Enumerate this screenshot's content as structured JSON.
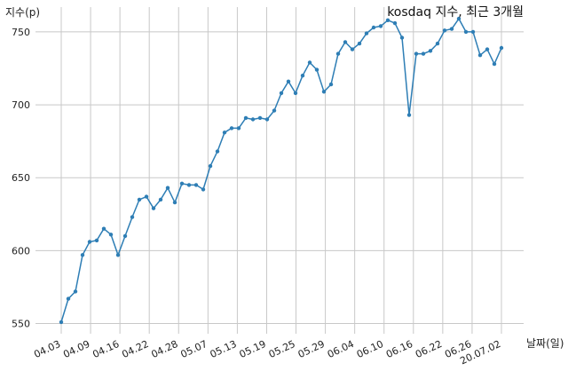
{
  "chart_data": {
    "type": "line",
    "title": "kosdaq 지수, 최근 3개월",
    "xlabel": "날짜(일)",
    "ylabel": "지수(p)",
    "ylim": [
      543,
      767
    ],
    "yticks": [
      550,
      600,
      650,
      700,
      750
    ],
    "grid": true,
    "line_color": "#2e7eb5",
    "xticks": [
      "04.03",
      "04.09",
      "04.16",
      "04.22",
      "04.28",
      "05.07",
      "05.13",
      "05.19",
      "05.25",
      "05.29",
      "06.04",
      "06.10",
      "06.16",
      "06.22",
      "06.26",
      "20.07.02"
    ],
    "series": [
      {
        "values": [
          551,
          567,
          572,
          597,
          606,
          607,
          615,
          611,
          597,
          610,
          623,
          635,
          637,
          629,
          635,
          643,
          633,
          646,
          645,
          645,
          642,
          658,
          668,
          681,
          684,
          684,
          691,
          690,
          691,
          690,
          696,
          708,
          716,
          708,
          720,
          729,
          724,
          709,
          714,
          735,
          743,
          738,
          742,
          749,
          753,
          754,
          758,
          756,
          746,
          693,
          735,
          735,
          737,
          742,
          751,
          752,
          759,
          750,
          750,
          734,
          738,
          728,
          739
        ]
      }
    ]
  }
}
